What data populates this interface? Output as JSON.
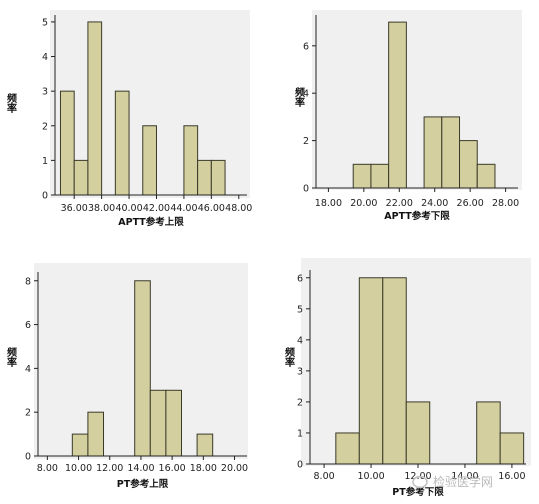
{
  "colors": {
    "plot_bg": "#f0f0f0",
    "bar_fill": "#d4cf9e",
    "bar_stroke": "#3a3a2a",
    "axis": "#222222"
  },
  "watermark": {
    "text": "检验医学网",
    "icon": "chat-bubble-logo-icon"
  },
  "chart_data": [
    {
      "type": "bar",
      "subtype": "histogram",
      "xlabel": "APTT参考上限",
      "ylabel": "频率",
      "x_ticks": [
        "36.00",
        "38.00",
        "40.00",
        "42.00",
        "44.00",
        "46.00",
        "48.00"
      ],
      "y_ticks": [
        "0",
        "1",
        "2",
        "3",
        "4",
        "5"
      ],
      "xlim": [
        34.6,
        48.6
      ],
      "ylim": [
        0,
        5.2
      ],
      "bins": [
        {
          "from": 35.0,
          "to": 36.0,
          "count": 3
        },
        {
          "from": 36.0,
          "to": 37.0,
          "count": 1
        },
        {
          "from": 37.0,
          "to": 38.0,
          "count": 5
        },
        {
          "from": 39.0,
          "to": 40.0,
          "count": 3
        },
        {
          "from": 41.0,
          "to": 42.0,
          "count": 2
        },
        {
          "from": 44.0,
          "to": 45.0,
          "count": 2
        },
        {
          "from": 45.0,
          "to": 46.0,
          "count": 1
        },
        {
          "from": 46.0,
          "to": 47.0,
          "count": 1
        }
      ]
    },
    {
      "type": "bar",
      "subtype": "histogram",
      "xlabel": "APTT参考下限",
      "ylabel": "频率",
      "x_ticks": [
        "18.00",
        "20.00",
        "22.00",
        "24.00",
        "26.00",
        "28.00"
      ],
      "y_ticks": [
        "0",
        "2",
        "4",
        "6"
      ],
      "xlim": [
        17.3,
        28.7
      ],
      "ylim": [
        0,
        7.3
      ],
      "bins": [
        {
          "from": 19.4,
          "to": 20.4,
          "count": 1
        },
        {
          "from": 20.4,
          "to": 21.4,
          "count": 1
        },
        {
          "from": 21.4,
          "to": 22.4,
          "count": 7
        },
        {
          "from": 23.4,
          "to": 24.4,
          "count": 3
        },
        {
          "from": 24.4,
          "to": 25.4,
          "count": 3
        },
        {
          "from": 25.4,
          "to": 26.4,
          "count": 2
        },
        {
          "from": 26.4,
          "to": 27.4,
          "count": 1
        }
      ]
    },
    {
      "type": "bar",
      "subtype": "histogram",
      "xlabel": "PT参考上限",
      "ylabel": "频率",
      "x_ticks": [
        "8.00",
        "10.00",
        "12.00",
        "14.00",
        "16.00",
        "18.00",
        "20.00"
      ],
      "y_ticks": [
        "0",
        "2",
        "4",
        "6",
        "8"
      ],
      "xlim": [
        7.4,
        20.8
      ],
      "ylim": [
        0,
        8.4
      ],
      "bins": [
        {
          "from": 9.6,
          "to": 10.6,
          "count": 1
        },
        {
          "from": 10.6,
          "to": 11.6,
          "count": 2
        },
        {
          "from": 13.6,
          "to": 14.6,
          "count": 8
        },
        {
          "from": 14.6,
          "to": 15.6,
          "count": 3
        },
        {
          "from": 15.6,
          "to": 16.6,
          "count": 3
        },
        {
          "from": 17.6,
          "to": 18.6,
          "count": 1
        }
      ]
    },
    {
      "type": "bar",
      "subtype": "histogram",
      "xlabel": "PT参考下限",
      "ylabel": "频率",
      "x_ticks": [
        "8.00",
        "10.00",
        "12.00",
        "14.00",
        "16.00"
      ],
      "y_ticks": [
        "0",
        "1",
        "2",
        "3",
        "4",
        "5",
        "6"
      ],
      "xlim": [
        7.4,
        16.6
      ],
      "ylim": [
        0,
        6.25
      ],
      "bins": [
        {
          "from": 8.5,
          "to": 9.5,
          "count": 1
        },
        {
          "from": 9.5,
          "to": 10.5,
          "count": 6
        },
        {
          "from": 10.5,
          "to": 11.5,
          "count": 6
        },
        {
          "from": 11.5,
          "to": 12.5,
          "count": 2
        },
        {
          "from": 14.5,
          "to": 15.5,
          "count": 2
        },
        {
          "from": 15.5,
          "to": 16.5,
          "count": 1
        }
      ]
    }
  ]
}
